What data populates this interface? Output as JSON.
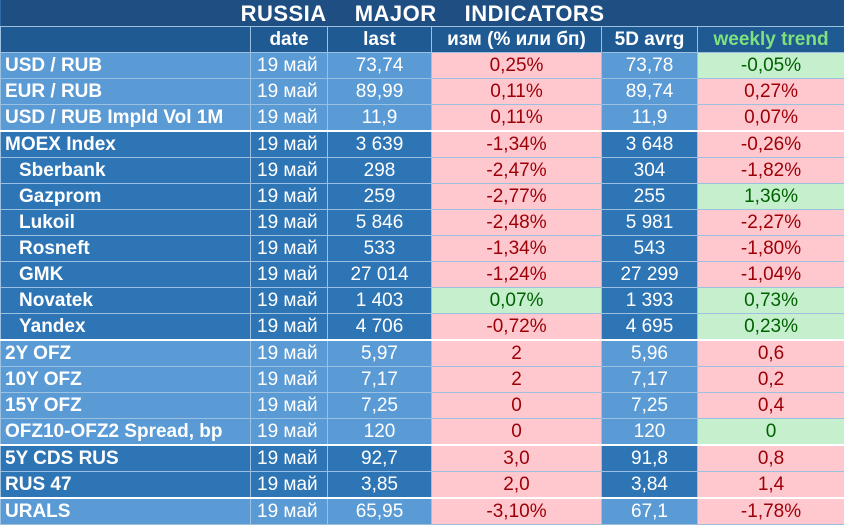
{
  "title_words": [
    "RUSSIA",
    "MAJOR",
    "INDICATORS"
  ],
  "headers": [
    "",
    "date",
    "last",
    "изм (% или бп)",
    "5D avrg",
    "weekly trend"
  ],
  "rows": [
    {
      "name": "USD / RUB",
      "date": "19 май",
      "last": "73,74",
      "chg": "0,25%",
      "chg_dir": "neg",
      "avg": "73,78",
      "trend": "-0,05%",
      "trend_dir": "pos",
      "group": "light",
      "sub": false,
      "sep": false
    },
    {
      "name": "EUR / RUB",
      "date": "19 май",
      "last": "89,99",
      "chg": "0,11%",
      "chg_dir": "neg",
      "avg": "89,74",
      "trend": "0,27%",
      "trend_dir": "neg",
      "group": "light",
      "sub": false,
      "sep": false
    },
    {
      "name": "USD / RUB Impld Vol 1M",
      "date": "19 май",
      "last": "11,9",
      "chg": "0,11%",
      "chg_dir": "neg",
      "avg": "11,9",
      "trend": "0,07%",
      "trend_dir": "neg",
      "group": "light",
      "sub": false,
      "sep": false
    },
    {
      "name": "MOEX Index",
      "date": "19 май",
      "last": "3 639",
      "chg": "-1,34%",
      "chg_dir": "neg",
      "avg": "3 648",
      "trend": "-0,26%",
      "trend_dir": "neg",
      "group": "dark",
      "sub": false,
      "sep": true
    },
    {
      "name": "Sberbank",
      "date": "19 май",
      "last": "298",
      "chg": "-2,47%",
      "chg_dir": "neg",
      "avg": "304",
      "trend": "-1,82%",
      "trend_dir": "neg",
      "group": "dark",
      "sub": true,
      "sep": false
    },
    {
      "name": "Gazprom",
      "date": "19 май",
      "last": "259",
      "chg": "-2,77%",
      "chg_dir": "neg",
      "avg": "255",
      "trend": "1,36%",
      "trend_dir": "pos",
      "group": "dark",
      "sub": true,
      "sep": false
    },
    {
      "name": "Lukoil",
      "date": "19 май",
      "last": "5 846",
      "chg": "-2,48%",
      "chg_dir": "neg",
      "avg": "5 981",
      "trend": "-2,27%",
      "trend_dir": "neg",
      "group": "dark",
      "sub": true,
      "sep": false
    },
    {
      "name": "Rosneft",
      "date": "19 май",
      "last": "533",
      "chg": "-1,34%",
      "chg_dir": "neg",
      "avg": "543",
      "trend": "-1,80%",
      "trend_dir": "neg",
      "group": "dark",
      "sub": true,
      "sep": false
    },
    {
      "name": "GMK",
      "date": "19 май",
      "last": "27 014",
      "chg": "-1,24%",
      "chg_dir": "neg",
      "avg": "27 299",
      "trend": "-1,04%",
      "trend_dir": "neg",
      "group": "dark",
      "sub": true,
      "sep": false
    },
    {
      "name": "Novatek",
      "date": "19 май",
      "last": "1 403",
      "chg": "0,07%",
      "chg_dir": "pos",
      "avg": "1 393",
      "trend": "0,73%",
      "trend_dir": "pos",
      "group": "dark",
      "sub": true,
      "sep": false
    },
    {
      "name": "Yandex",
      "date": "19 май",
      "last": "4 706",
      "chg": "-0,72%",
      "chg_dir": "neg",
      "avg": "4 695",
      "trend": "0,23%",
      "trend_dir": "pos",
      "group": "dark",
      "sub": true,
      "sep": false
    },
    {
      "name": "2Y OFZ",
      "date": "19 май",
      "last": "5,97",
      "chg": "2",
      "chg_dir": "neg",
      "avg": "5,96",
      "trend": "0,6",
      "trend_dir": "neg",
      "group": "light",
      "sub": false,
      "sep": true
    },
    {
      "name": "10Y OFZ",
      "date": "19 май",
      "last": "7,17",
      "chg": "2",
      "chg_dir": "neg",
      "avg": "7,17",
      "trend": "0,2",
      "trend_dir": "neg",
      "group": "light",
      "sub": false,
      "sep": false
    },
    {
      "name": "15Y OFZ",
      "date": "19 май",
      "last": "7,25",
      "chg": "0",
      "chg_dir": "neg",
      "avg": "7,25",
      "trend": "0,4",
      "trend_dir": "neg",
      "group": "light",
      "sub": false,
      "sep": false
    },
    {
      "name": "OFZ10-OFZ2 Spread, bp",
      "date": "19 май",
      "last": "120",
      "chg": "0",
      "chg_dir": "neg",
      "avg": "120",
      "trend": "0",
      "trend_dir": "pos",
      "group": "light",
      "sub": false,
      "sep": false
    },
    {
      "name": "5Y CDS RUS",
      "date": "19 май",
      "last": "92,7",
      "chg": "3,0",
      "chg_dir": "neg",
      "avg": "91,8",
      "trend": "0,8",
      "trend_dir": "neg",
      "group": "dark",
      "sub": false,
      "sep": true
    },
    {
      "name": "RUS 47",
      "date": "19 май",
      "last": "3,85",
      "chg": "2,0",
      "chg_dir": "neg",
      "avg": "3,84",
      "trend": "1,4",
      "trend_dir": "neg",
      "group": "dark",
      "sub": false,
      "sep": false
    },
    {
      "name": "URALS",
      "date": "19 май",
      "last": "65,95",
      "chg": "-3,10%",
      "chg_dir": "neg",
      "avg": "67,1",
      "trend": "-1,78%",
      "trend_dir": "neg",
      "group": "light",
      "sub": false,
      "sep": true
    }
  ]
}
